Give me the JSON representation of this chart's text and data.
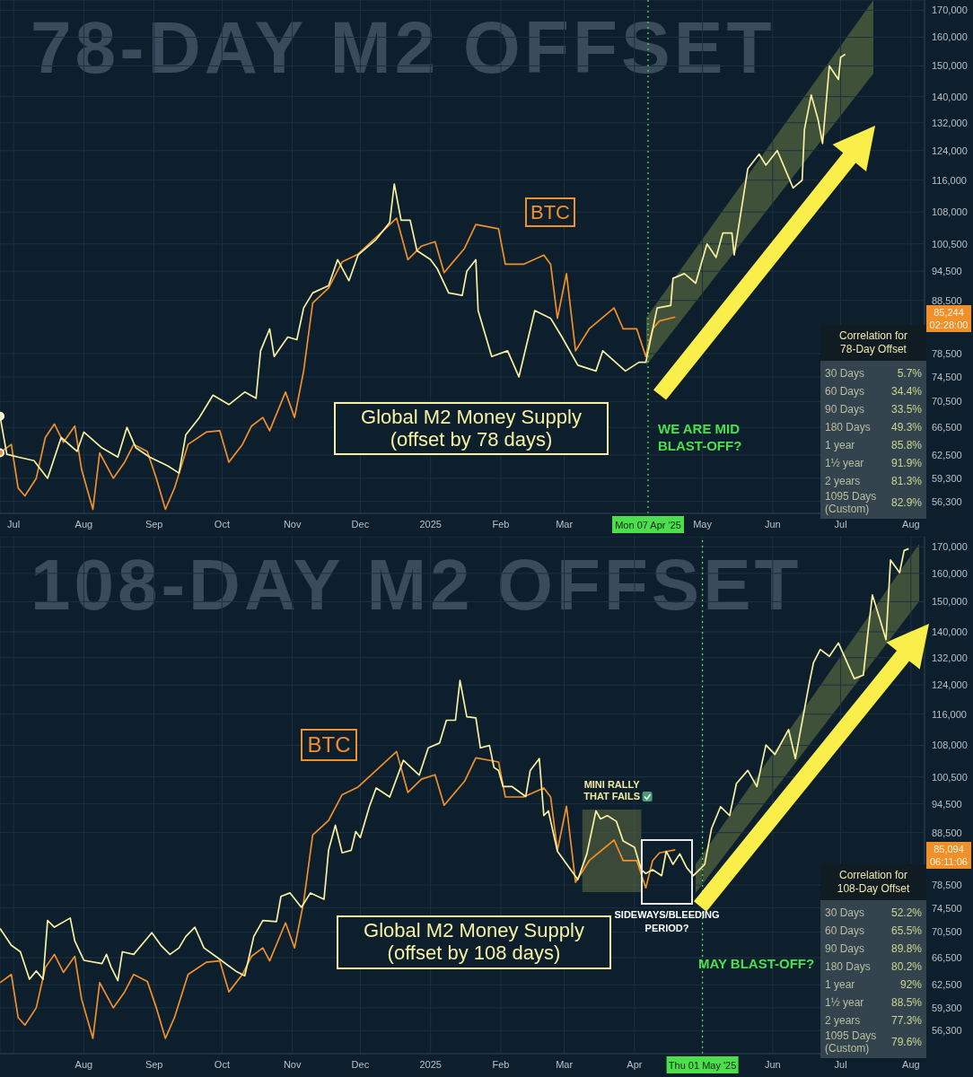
{
  "chart_data": [
    {
      "type": "line",
      "title": "78-DAY M2 OFFSET",
      "log": true,
      "grid": true,
      "legend": false,
      "xlim": [
        "2024-06-25",
        "2025-08-07"
      ],
      "xticks": [
        {
          "value": "2024-07-01",
          "label": "Jul"
        },
        {
          "value": "2024-08-01",
          "label": "Aug"
        },
        {
          "value": "2024-09-01",
          "label": "Sep"
        },
        {
          "value": "2024-10-01",
          "label": "Oct"
        },
        {
          "value": "2024-11-01",
          "label": "Nov"
        },
        {
          "value": "2024-12-01",
          "label": "Dec"
        },
        {
          "value": "2025-01-01",
          "label": "2025"
        },
        {
          "value": "2025-02-01",
          "label": "Feb"
        },
        {
          "value": "2025-03-01",
          "label": "Mar"
        },
        {
          "value": "2025-04-01",
          "label": null
        },
        {
          "value": "2025-05-01",
          "label": "May"
        },
        {
          "value": "2025-06-01",
          "label": "Jun"
        },
        {
          "value": "2025-07-01",
          "label": "Jul"
        },
        {
          "value": "2025-08-01",
          "label": "Aug"
        }
      ],
      "ylim": [
        54800,
        174000
      ],
      "yticks": [
        {
          "value": 56300,
          "label": "56,300"
        },
        {
          "value": 59300,
          "label": "59,300"
        },
        {
          "value": 62500,
          "label": "62,500"
        },
        {
          "value": 66500,
          "label": "66,500"
        },
        {
          "value": 70500,
          "label": "70,500"
        },
        {
          "value": 74500,
          "label": "74,500"
        },
        {
          "value": 78500,
          "label": "78,500"
        },
        {
          "value": 88500,
          "label": "88,500"
        },
        {
          "value": 94500,
          "label": "94,500"
        },
        {
          "value": 100500,
          "label": "100,500"
        },
        {
          "value": 108000,
          "label": "108,000"
        },
        {
          "value": 116000,
          "label": "116,000"
        },
        {
          "value": 124000,
          "label": "124,000"
        },
        {
          "value": 132000,
          "label": "132,000"
        },
        {
          "value": 140000,
          "label": "140,000"
        },
        {
          "value": 150000,
          "label": "150,000"
        },
        {
          "value": 160000,
          "label": "160,000"
        },
        {
          "value": 170000,
          "label": "170,000"
        }
      ],
      "series": [
        {
          "name": "BTC",
          "color": "#f0902a",
          "x": [
            "2024-06-25",
            "2024-06-30",
            "2024-07-03",
            "2024-07-06",
            "2024-07-11",
            "2024-07-15",
            "2024-07-19",
            "2024-07-23",
            "2024-07-28",
            "2024-07-31",
            "2024-08-05",
            "2024-08-08",
            "2024-08-14",
            "2024-08-19",
            "2024-08-23",
            "2024-08-29",
            "2024-09-02",
            "2024-09-06",
            "2024-09-10",
            "2024-09-16",
            "2024-09-24",
            "2024-09-30",
            "2024-10-04",
            "2024-10-10",
            "2024-10-14",
            "2024-10-19",
            "2024-10-22",
            "2024-10-29",
            "2024-11-02",
            "2024-11-06",
            "2024-11-10",
            "2024-11-17",
            "2024-11-23",
            "2024-11-30",
            "2024-12-08",
            "2024-12-17",
            "2024-12-22",
            "2024-12-28",
            "2025-01-03",
            "2025-01-07",
            "2025-01-16",
            "2025-01-21",
            "2025-01-31",
            "2025-02-03",
            "2025-02-11",
            "2025-02-20",
            "2025-02-23",
            "2025-02-26",
            "2025-03-02",
            "2025-03-06",
            "2025-03-12",
            "2025-03-23",
            "2025-03-27",
            "2025-04-02",
            "2025-04-06",
            "2025-04-09",
            "2025-04-12",
            "2025-04-19"
          ],
          "values": [
            62800,
            64000,
            58000,
            57000,
            59300,
            65000,
            67000,
            64300,
            66700,
            60500,
            55300,
            62800,
            59300,
            61500,
            64000,
            63000,
            59300,
            55300,
            58000,
            64000,
            65800,
            66000,
            61500,
            64000,
            66700,
            68000,
            66000,
            72000,
            68000,
            75500,
            88000,
            91000,
            96500,
            98200,
            102000,
            106500,
            97000,
            100000,
            101000,
            94200,
            99500,
            105000,
            104000,
            96000,
            96000,
            98000,
            96000,
            85000,
            94000,
            79000,
            83000,
            87000,
            83000,
            83000,
            78000,
            83000,
            84500,
            85244
          ]
        },
        {
          "name": "Global M2 Money Supply (offset by 78 days)",
          "color": "#f7f0a0",
          "x": [
            "2024-06-25",
            "2024-06-28",
            "2024-07-03",
            "2024-07-10",
            "2024-07-16",
            "2024-07-22",
            "2024-07-29",
            "2024-08-01",
            "2024-08-09",
            "2024-08-16",
            "2024-08-20",
            "2024-08-24",
            "2024-08-30",
            "2024-09-07",
            "2024-09-12",
            "2024-09-15",
            "2024-09-21",
            "2024-09-27",
            "2024-10-04",
            "2024-10-11",
            "2024-10-16",
            "2024-10-18",
            "2024-10-22",
            "2024-10-24",
            "2024-10-30",
            "2024-11-03",
            "2024-11-06",
            "2024-11-10",
            "2024-11-17",
            "2024-11-21",
            "2024-11-26",
            "2024-11-30",
            "2024-12-08",
            "2024-12-14",
            "2024-12-16",
            "2024-12-19",
            "2024-12-23",
            "2024-12-26",
            "2025-01-01",
            "2025-01-04",
            "2025-01-09",
            "2025-01-15",
            "2025-01-17",
            "2025-01-21",
            "2025-01-22",
            "2025-01-28",
            "2025-02-04",
            "2025-02-09",
            "2025-02-16",
            "2025-02-23",
            "2025-02-28",
            "2025-03-07",
            "2025-03-15",
            "2025-03-18",
            "2025-03-28",
            "2025-04-03",
            "2025-04-06",
            "2025-04-11",
            "2025-04-17",
            "2025-04-18",
            "2025-04-23",
            "2025-04-28",
            "2025-05-03",
            "2025-05-07",
            "2025-05-10",
            "2025-05-14",
            "2025-05-15",
            "2025-05-21",
            "2025-05-26",
            "2025-05-29",
            "2025-06-03",
            "2025-06-10",
            "2025-06-14",
            "2025-06-15",
            "2025-06-18",
            "2025-06-21",
            "2025-06-23",
            "2025-06-26",
            "2025-06-30",
            "2025-07-01",
            "2025-07-03"
          ],
          "values": [
            68200,
            62600,
            62200,
            61700,
            59300,
            65000,
            63000,
            65800,
            63500,
            62200,
            66500,
            63500,
            62200,
            61000,
            60000,
            65400,
            68000,
            71500,
            70000,
            72000,
            71000,
            79000,
            83000,
            78000,
            81500,
            81000,
            87000,
            90000,
            91500,
            97000,
            92500,
            98000,
            101500,
            105500,
            115000,
            106000,
            106000,
            99000,
            97000,
            95000,
            90000,
            89500,
            94500,
            97000,
            86500,
            78000,
            79000,
            74500,
            86500,
            85000,
            81500,
            76500,
            75500,
            79000,
            75500,
            77000,
            77000,
            87000,
            87500,
            93000,
            94000,
            92000,
            100500,
            97500,
            103000,
            103000,
            98000,
            119000,
            123000,
            120000,
            124000,
            114000,
            116000,
            130000,
            140500,
            133000,
            126000,
            150000,
            145500,
            153000,
            154000
          ]
        }
      ],
      "ref_lines": [
        {
          "axis": "x",
          "value": "2025-04-07",
          "label": "Mon 07 Apr '25",
          "color": "#4be04b",
          "line_style": "dotted"
        }
      ],
      "annotations": [
        "85,244",
        "02:28:00",
        "WE ARE MID BLAST-OFF?"
      ]
    },
    {
      "type": "other",
      "title": "Correlation for 78-Day Offset",
      "annotations": [
        "30 Days",
        "5.7%",
        "60 Days",
        "34.4%",
        "90 Days",
        "33.5%",
        "180 Days",
        "49.3%",
        "1 year",
        "85.8%",
        "1½ year",
        "91.9%",
        "2 years",
        "81.3%",
        "1095 Days (Custom)",
        "82.9%"
      ]
    },
    {
      "type": "line",
      "title": "108-DAY M2 OFFSET",
      "log": true,
      "grid": true,
      "legend": false,
      "xlim": [
        "2024-06-25",
        "2025-08-07"
      ],
      "xticks": [
        {
          "value": "2024-07-01",
          "label": null
        },
        {
          "value": "2024-08-01",
          "label": "Aug"
        },
        {
          "value": "2024-09-01",
          "label": "Sep"
        },
        {
          "value": "2024-10-01",
          "label": "Oct"
        },
        {
          "value": "2024-11-01",
          "label": "Nov"
        },
        {
          "value": "2024-12-01",
          "label": "Dec"
        },
        {
          "value": "2025-01-01",
          "label": "2025"
        },
        {
          "value": "2025-02-01",
          "label": "Feb"
        },
        {
          "value": "2025-03-01",
          "label": "Mar"
        },
        {
          "value": "2025-04-01",
          "label": "Apr"
        },
        {
          "value": "2025-05-01",
          "label": null
        },
        {
          "value": "2025-06-01",
          "label": "Jun"
        },
        {
          "value": "2025-07-01",
          "label": "Jul"
        },
        {
          "value": "2025-08-01",
          "label": "Aug"
        }
      ],
      "ylim": [
        53400,
        174000
      ],
      "yticks": [
        {
          "value": 56300,
          "label": "56,300"
        },
        {
          "value": 59300,
          "label": "59,300"
        },
        {
          "value": 62500,
          "label": "62,500"
        },
        {
          "value": 66500,
          "label": "66,500"
        },
        {
          "value": 70500,
          "label": "70,500"
        },
        {
          "value": 74500,
          "label": "74,500"
        },
        {
          "value": 78500,
          "label": "78,500"
        },
        {
          "value": 88500,
          "label": "88,500"
        },
        {
          "value": 94500,
          "label": "94,500"
        },
        {
          "value": 100500,
          "label": "100,500"
        },
        {
          "value": 108000,
          "label": "108,000"
        },
        {
          "value": 116000,
          "label": "116,000"
        },
        {
          "value": 124000,
          "label": "124,000"
        },
        {
          "value": 132000,
          "label": "132,000"
        },
        {
          "value": 140000,
          "label": "140,000"
        },
        {
          "value": 150000,
          "label": "150,000"
        },
        {
          "value": 160000,
          "label": "160,000"
        },
        {
          "value": 170000,
          "label": "170,000"
        }
      ],
      "series": [
        {
          "name": "BTC",
          "color": "#f0902a",
          "x": [
            "2024-06-25",
            "2024-06-30",
            "2024-07-03",
            "2024-07-06",
            "2024-07-11",
            "2024-07-15",
            "2024-07-19",
            "2024-07-23",
            "2024-07-28",
            "2024-07-31",
            "2024-08-05",
            "2024-08-08",
            "2024-08-14",
            "2024-08-19",
            "2024-08-23",
            "2024-08-29",
            "2024-09-02",
            "2024-09-06",
            "2024-09-10",
            "2024-09-16",
            "2024-09-24",
            "2024-09-30",
            "2024-10-04",
            "2024-10-10",
            "2024-10-14",
            "2024-10-19",
            "2024-10-22",
            "2024-10-29",
            "2024-11-02",
            "2024-11-06",
            "2024-11-10",
            "2024-11-17",
            "2024-11-23",
            "2024-11-30",
            "2024-12-08",
            "2024-12-17",
            "2024-12-22",
            "2024-12-28",
            "2025-01-03",
            "2025-01-07",
            "2025-01-16",
            "2025-01-21",
            "2025-01-31",
            "2025-02-03",
            "2025-02-11",
            "2025-02-20",
            "2025-02-23",
            "2025-02-26",
            "2025-03-02",
            "2025-03-06",
            "2025-03-12",
            "2025-03-23",
            "2025-03-27",
            "2025-04-02",
            "2025-04-06",
            "2025-04-09",
            "2025-04-12",
            "2025-04-19"
          ],
          "values": [
            62800,
            64000,
            58000,
            57000,
            59300,
            65000,
            67000,
            64300,
            66700,
            60500,
            55300,
            62800,
            59300,
            61500,
            64000,
            63000,
            59300,
            55300,
            58000,
            64000,
            65800,
            66000,
            61500,
            64000,
            66700,
            68000,
            66000,
            72000,
            68000,
            75500,
            88000,
            91000,
            96500,
            98200,
            102000,
            106500,
            97000,
            100000,
            101000,
            94200,
            99500,
            105000,
            104000,
            96000,
            96000,
            98000,
            96000,
            85000,
            94000,
            79000,
            83000,
            87000,
            83000,
            83000,
            78000,
            83000,
            84500,
            85094
          ]
        },
        {
          "name": "Global M2 Money Supply (offset by 108 days)",
          "color": "#f7f0a0",
          "x": [
            "2024-06-25",
            "2024-06-30",
            "2024-07-04",
            "2024-07-08",
            "2024-07-11",
            "2024-07-14",
            "2024-07-16",
            "2024-07-19",
            "2024-07-26",
            "2024-07-28",
            "2024-08-01",
            "2024-08-09",
            "2024-08-11",
            "2024-08-13",
            "2024-08-16",
            "2024-08-18",
            "2024-08-23",
            "2024-08-31",
            "2024-09-04",
            "2024-09-08",
            "2024-09-12",
            "2024-09-15",
            "2024-09-19",
            "2024-09-23",
            "2024-09-29",
            "2024-10-07",
            "2024-10-11",
            "2024-10-15",
            "2024-10-19",
            "2024-10-25",
            "2024-10-27",
            "2024-10-31",
            "2024-11-05",
            "2024-11-09",
            "2024-11-15",
            "2024-11-17",
            "2024-11-20",
            "2024-11-23",
            "2024-11-27",
            "2024-11-29",
            "2024-12-01",
            "2024-12-05",
            "2024-12-08",
            "2024-12-14",
            "2024-12-20",
            "2024-12-27",
            "2024-12-31",
            "2025-01-05",
            "2025-01-08",
            "2025-01-12",
            "2025-01-14",
            "2025-01-17",
            "2025-01-21",
            "2025-01-23",
            "2025-01-27",
            "2025-01-29",
            "2025-01-31",
            "2025-02-02",
            "2025-02-06",
            "2025-02-12",
            "2025-02-14",
            "2025-02-18",
            "2025-02-20",
            "2025-02-22",
            "2025-02-26",
            "2025-03-01",
            "2025-03-07",
            "2025-03-11",
            "2025-03-15",
            "2025-03-17",
            "2025-03-20",
            "2025-03-24",
            "2025-03-27",
            "2025-04-01",
            "2025-04-04",
            "2025-04-06",
            "2025-04-09",
            "2025-04-13",
            "2025-04-15",
            "2025-04-18",
            "2025-04-21",
            "2025-04-24",
            "2025-04-27",
            "2025-05-02",
            "2025-05-05",
            "2025-05-09",
            "2025-05-13",
            "2025-05-16",
            "2025-05-21",
            "2025-05-25",
            "2025-05-29",
            "2025-06-02",
            "2025-06-08",
            "2025-06-11",
            "2025-06-17",
            "2025-06-19",
            "2025-06-22",
            "2025-06-26",
            "2025-06-30",
            "2025-07-07",
            "2025-07-11",
            "2025-07-13",
            "2025-07-15",
            "2025-07-18",
            "2025-07-21",
            "2025-07-23",
            "2025-07-27",
            "2025-07-29",
            "2025-07-31"
          ],
          "values": [
            71100,
            68400,
            67400,
            63300,
            64500,
            63300,
            72400,
            71300,
            72800,
            69100,
            66100,
            65600,
            67000,
            65100,
            63100,
            67400,
            67000,
            70400,
            68400,
            67000,
            68000,
            69800,
            71300,
            68000,
            66500,
            64500,
            63800,
            69800,
            72400,
            72200,
            76500,
            77100,
            74600,
            77100,
            76000,
            85000,
            90000,
            84500,
            85000,
            88700,
            87500,
            93900,
            98000,
            96000,
            104400,
            100900,
            107400,
            108600,
            114400,
            114400,
            125300,
            115300,
            115000,
            107400,
            108000,
            102700,
            102000,
            98300,
            98300,
            96100,
            102000,
            104800,
            92000,
            93000,
            84800,
            83000,
            79500,
            84300,
            93000,
            91300,
            92000,
            90800,
            86800,
            85600,
            81300,
            80600,
            81300,
            80200,
            84800,
            82300,
            84300,
            81700,
            80200,
            82300,
            89300,
            93900,
            92000,
            99000,
            102000,
            98300,
            108100,
            105800,
            112000,
            104800,
            124000,
            130500,
            134500,
            132400,
            136500,
            125800,
            126800,
            139600,
            152300,
            144800,
            137500,
            165000,
            160300,
            168600,
            169300
          ]
        }
      ],
      "ref_lines": [
        {
          "axis": "x",
          "value": "2025-05-01",
          "label": "Thu 01 May '25",
          "color": "#4be04b",
          "line_style": "dotted"
        }
      ],
      "bands": [
        {
          "axis": "x",
          "from": "2025-03-09",
          "to": "2025-04-04",
          "label": "MINI RALLY THAT FAILS",
          "color": "#4b5a3c"
        }
      ],
      "annotations": [
        "85,094",
        "06:11:06",
        "SIDEWAYS/BLEEDING PERIOD?",
        "MAY BLAST-OFF?"
      ]
    },
    {
      "type": "other",
      "title": "Correlation for 108-Day Offset",
      "annotations": [
        "30 Days",
        "52.2%",
        "60 Days",
        "65.5%",
        "90 Days",
        "89.8%",
        "180 Days",
        "80.2%",
        "1 year",
        "92%",
        "1½ year",
        "88.5%",
        "2 years",
        "77.3%",
        "1095 Days (Custom)",
        "79.6%"
      ]
    }
  ]
}
